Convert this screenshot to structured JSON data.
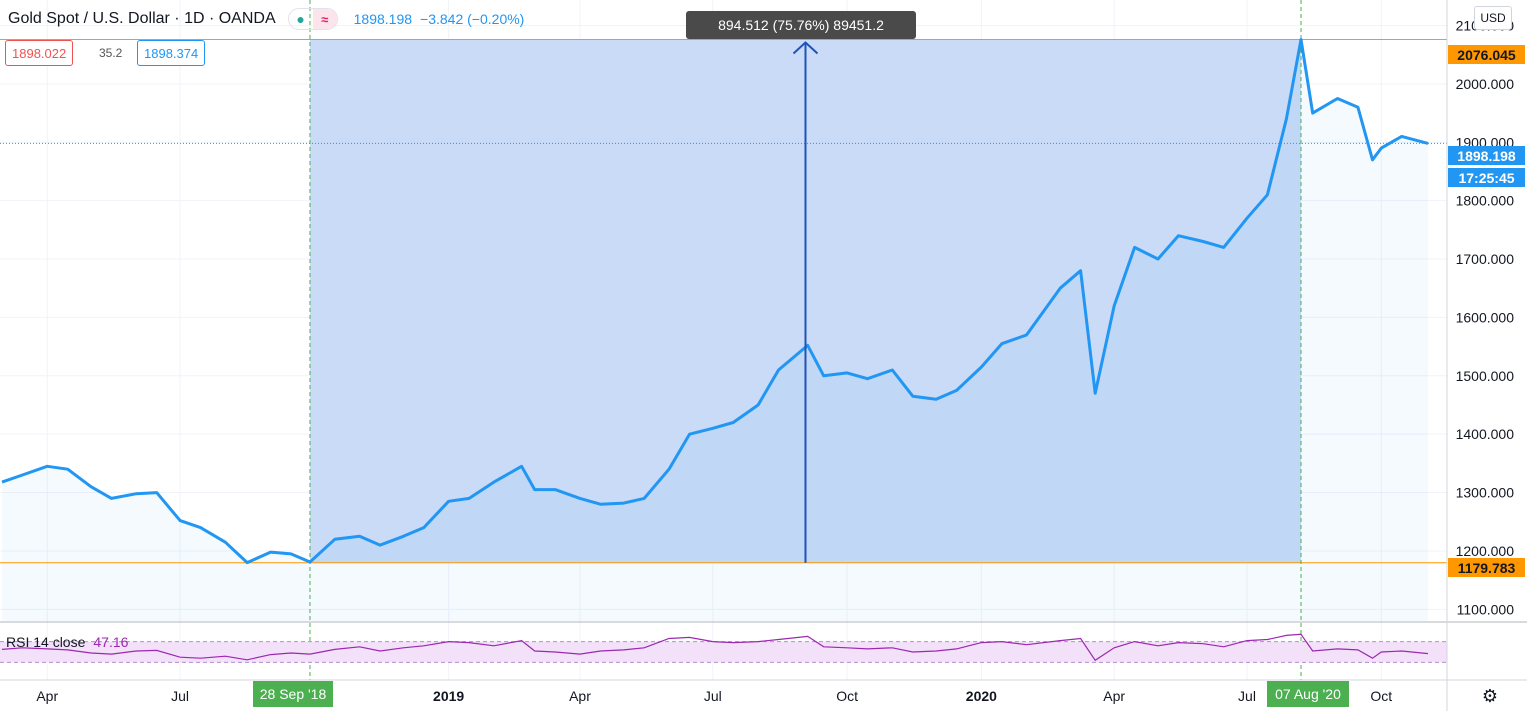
{
  "header": {
    "symbol": "Gold Spot / U.S. Dollar · 1D · OANDA",
    "last": "1898.198",
    "change": "−3.842 (−0.20%)"
  },
  "quotes": {
    "sell": "1898.022",
    "spread": "35.2",
    "buy": "1898.374"
  },
  "currency_button": "USD",
  "measure_tooltip": "894.512 (75.76%) 89451.2",
  "price_labels": {
    "high": "2076.045",
    "low": "1179.783",
    "last": "1898.198",
    "countdown": "17:25:45"
  },
  "range_start_label": "28 Sep '18",
  "range_end_label": "07 Aug '20",
  "rsi": {
    "label": "RSI 14 close",
    "value": "47.16"
  },
  "colors": {
    "line": "#2196f3",
    "range_fill": "#c6d9f6",
    "highlow_line": "#ff9800",
    "rsi_line": "#9c27b0",
    "rsi_band": "#f3e1fa",
    "badge": "#4caf50"
  },
  "icons": {
    "settings": "gear-icon",
    "indicators": "wave-icon"
  },
  "chart_data": {
    "type": "line",
    "title": "Gold Spot / U.S. Dollar",
    "y_range": [
      1080,
      2130
    ],
    "y_ticks": [
      "1100.000",
      "1200.000",
      "1300.000",
      "1400.000",
      "1500.000",
      "1600.000",
      "1700.000",
      "1800.000",
      "1900.000",
      "2000.000",
      "2100.000"
    ],
    "x_ticks": [
      "Apr",
      "Jul",
      "2019",
      "Apr",
      "Jul",
      "Oct",
      "2020",
      "Apr",
      "Jul",
      "Oct"
    ],
    "x": [
      "2018-03-01",
      "2018-03-15",
      "2018-04-01",
      "2018-04-15",
      "2018-05-01",
      "2018-05-15",
      "2018-06-01",
      "2018-06-15",
      "2018-07-01",
      "2018-07-15",
      "2018-08-01",
      "2018-08-16",
      "2018-09-01",
      "2018-09-15",
      "2018-09-28",
      "2018-10-15",
      "2018-11-01",
      "2018-11-15",
      "2018-12-01",
      "2018-12-15",
      "2019-01-01",
      "2019-01-15",
      "2019-02-01",
      "2019-02-20",
      "2019-03-01",
      "2019-03-15",
      "2019-04-01",
      "2019-04-15",
      "2019-05-01",
      "2019-05-15",
      "2019-06-01",
      "2019-06-15",
      "2019-07-01",
      "2019-07-15",
      "2019-08-01",
      "2019-08-15",
      "2019-09-04",
      "2019-09-15",
      "2019-10-01",
      "2019-10-15",
      "2019-11-01",
      "2019-11-15",
      "2019-12-01",
      "2019-12-15",
      "2020-01-01",
      "2020-01-15",
      "2020-02-01",
      "2020-02-24",
      "2020-03-09",
      "2020-03-19",
      "2020-04-01",
      "2020-04-15",
      "2020-05-01",
      "2020-05-15",
      "2020-06-01",
      "2020-06-15",
      "2020-07-01",
      "2020-07-15",
      "2020-07-28",
      "2020-08-07",
      "2020-08-15",
      "2020-09-01",
      "2020-09-15",
      "2020-09-25",
      "2020-10-01",
      "2020-10-15",
      "2020-11-02"
    ],
    "series": [
      {
        "values": [
          1318,
          1330,
          1345,
          1340,
          1310,
          1290,
          1298,
          1300,
          1252,
          1240,
          1215,
          1180,
          1198,
          1195,
          1181,
          1220,
          1225,
          1210,
          1225,
          1240,
          1285,
          1290,
          1318,
          1345,
          1305,
          1305,
          1290,
          1280,
          1282,
          1290,
          1340,
          1400,
          1410,
          1420,
          1450,
          1510,
          1552,
          1500,
          1505,
          1495,
          1510,
          1465,
          1460,
          1475,
          1515,
          1555,
          1570,
          1650,
          1680,
          1470,
          1620,
          1720,
          1700,
          1740,
          1730,
          1720,
          1770,
          1810,
          1940,
          2076,
          1950,
          1975,
          1960,
          1870,
          1890,
          1910,
          1898
        ]
      },
      {
        "name": "RSI 14 close",
        "values": [
          55,
          58,
          56,
          54,
          48,
          46,
          52,
          53,
          40,
          38,
          42,
          35,
          45,
          48,
          46,
          55,
          60,
          52,
          58,
          62,
          70,
          68,
          62,
          72,
          52,
          50,
          46,
          52,
          54,
          58,
          76,
          78,
          70,
          68,
          70,
          74,
          80,
          60,
          58,
          56,
          58,
          50,
          52,
          56,
          68,
          70,
          64,
          72,
          76,
          34,
          58,
          70,
          62,
          68,
          66,
          60,
          72,
          74,
          82,
          84,
          52,
          56,
          54,
          38,
          50,
          52,
          47
        ]
      }
    ]
  }
}
